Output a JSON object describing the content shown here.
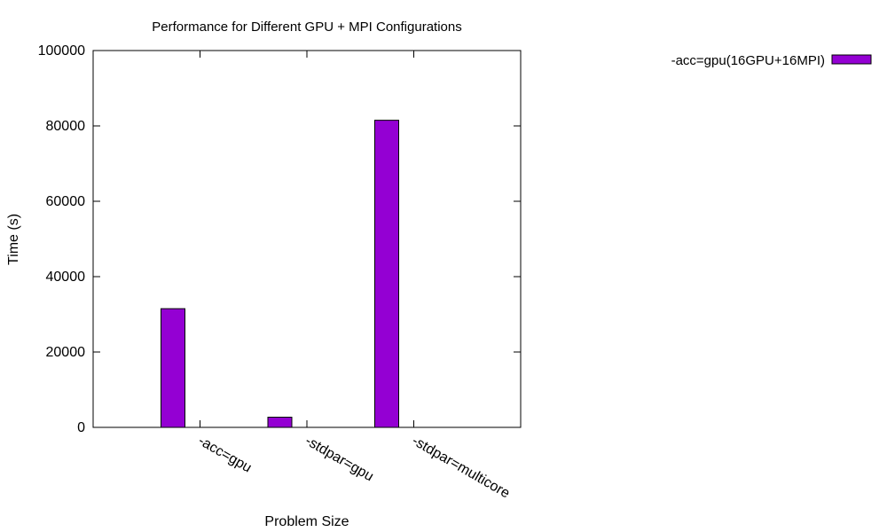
{
  "chart_data": {
    "type": "bar",
    "title": "Performance for Different GPU + MPI Configurations",
    "xlabel": "Problem Size",
    "ylabel": "Time (s)",
    "categories": [
      "-acc=gpu",
      "-stdpar=gpu",
      "-stdpar=multicore"
    ],
    "series": [
      {
        "name": "-acc=gpu(16GPU+16MPI)",
        "values": [
          31500,
          2700,
          81500
        ],
        "color": "#9400d3"
      }
    ],
    "ylim": [
      0,
      100000
    ],
    "yticks": [
      "0",
      "20000",
      "40000",
      "60000",
      "80000",
      "100000"
    ],
    "grid": false,
    "legend_position": "top-right"
  }
}
